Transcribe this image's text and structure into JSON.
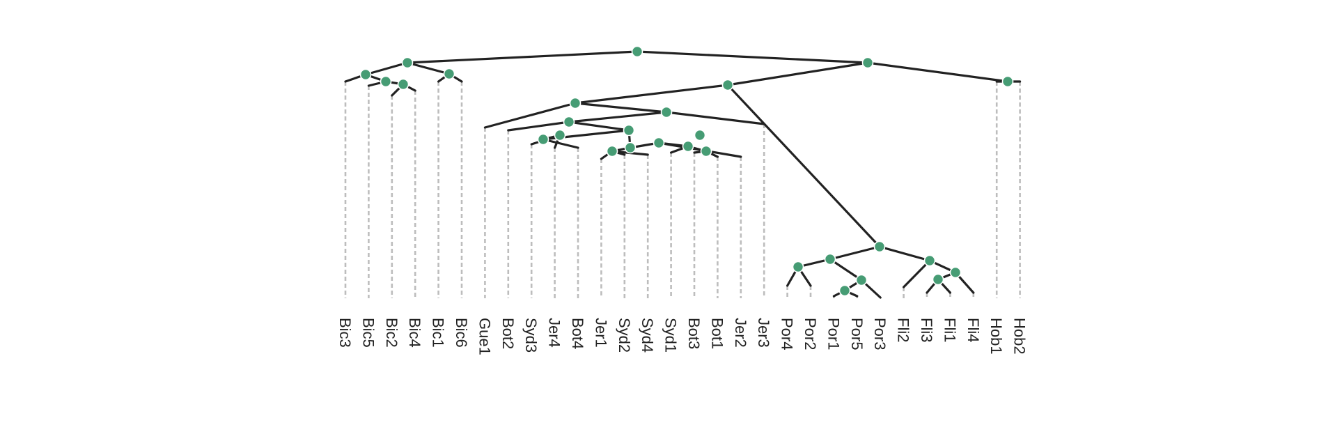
{
  "tree": {
    "node_color": "#469c74",
    "edge_color": "#222222",
    "dashed_drop_color": "#bdbdbd",
    "leaves": [
      "Bic3",
      "Bic5",
      "Bic2",
      "Bic4",
      "Bic1",
      "Bic6",
      "Gue1",
      "Bot2",
      "Syd3",
      "Jer4",
      "Bot4",
      "Jer1",
      "Syd2",
      "Syd4",
      "Syd1",
      "Bot3",
      "Bot1",
      "Jer2",
      "Jer3",
      "Por4",
      "Por2",
      "Por1",
      "Por5",
      "Por3",
      "Fli2",
      "Fli3",
      "Fli1",
      "Fli4",
      "Hob1",
      "Hob2"
    ]
  }
}
